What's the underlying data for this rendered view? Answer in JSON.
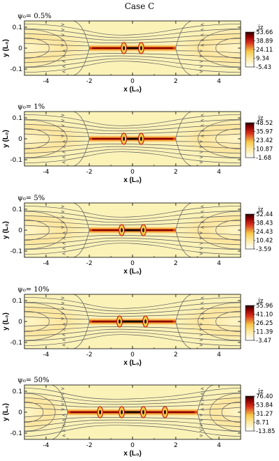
{
  "figure": {
    "title": "Case C"
  },
  "chart_data": [
    {
      "type": "heatmap",
      "panel_label": "ψ₀= 0.5%",
      "xlabel": "x (L₀)",
      "ylabel": "y (L₀)",
      "xlim": [
        -5,
        5
      ],
      "ylim": [
        -0.13,
        0.13
      ],
      "xticks": [
        "-4",
        "-2",
        "0",
        "2",
        "4"
      ],
      "yticks": [
        "0.1",
        "0",
        "-0.1"
      ],
      "colorbar": {
        "label": "jz",
        "ticks": [
          "53.66",
          "38.89",
          "24.11",
          "9.34",
          "-5.43"
        ],
        "range": [
          -5.43,
          53.66
        ]
      },
      "current_sheet": {
        "x_extent": [
          -2,
          2
        ],
        "plasmoid_centers": [
          -0.4,
          0.4
        ],
        "peak": 53.66
      },
      "x_points": [
        -2,
        2
      ]
    },
    {
      "type": "heatmap",
      "panel_label": "ψ₀= 1%",
      "xlabel": "x (L₀)",
      "ylabel": "y (L₀)",
      "xlim": [
        -5,
        5
      ],
      "ylim": [
        -0.13,
        0.13
      ],
      "xticks": [
        "-4",
        "-2",
        "0",
        "2",
        "4"
      ],
      "yticks": [
        "0.1",
        "0",
        "-0.1"
      ],
      "colorbar": {
        "label": "jz",
        "ticks": [
          "48.52",
          "35.97",
          "23.42",
          "10.87",
          "-1.68"
        ],
        "range": [
          -1.68,
          48.52
        ]
      },
      "current_sheet": {
        "x_extent": [
          -2,
          2
        ],
        "plasmoid_centers": [
          -0.4,
          0.4
        ],
        "peak": 48.52
      },
      "x_points": [
        -2,
        2
      ]
    },
    {
      "type": "heatmap",
      "panel_label": "ψ₀= 5%",
      "xlabel": "x (L₀)",
      "ylabel": "y (L₀)",
      "xlim": [
        -5,
        5
      ],
      "ylim": [
        -0.13,
        0.13
      ],
      "xticks": [
        "-4",
        "-2",
        "0",
        "2",
        "4"
      ],
      "yticks": [
        "0.1",
        "0",
        "-0.1"
      ],
      "colorbar": {
        "label": "jz",
        "ticks": [
          "52.44",
          "38.43",
          "24.43",
          "10.42",
          "-3.59"
        ],
        "range": [
          -3.59,
          52.44
        ]
      },
      "current_sheet": {
        "x_extent": [
          -2,
          2
        ],
        "plasmoid_centers": [
          -0.5,
          0.5
        ],
        "peak": 52.44
      },
      "x_points": [
        -2,
        2
      ]
    },
    {
      "type": "heatmap",
      "panel_label": "ψ₀= 10%",
      "xlabel": "x (L₀)",
      "ylabel": "y (L₀)",
      "xlim": [
        -5,
        5
      ],
      "ylim": [
        -0.13,
        0.13
      ],
      "xticks": [
        "-4",
        "-2",
        "0",
        "2",
        "4"
      ],
      "yticks": [
        "0.1",
        "0",
        "-0.1"
      ],
      "colorbar": {
        "label": "jz",
        "ticks": [
          "55.96",
          "41.10",
          "26.25",
          "11.39",
          "-3.47"
        ],
        "range": [
          -3.47,
          55.96
        ]
      },
      "current_sheet": {
        "x_extent": [
          -2,
          2
        ],
        "plasmoid_centers": [
          -0.6,
          0.6
        ],
        "peak": 55.96
      },
      "x_points": [
        -2,
        2
      ]
    },
    {
      "type": "heatmap",
      "panel_label": "ψ₀= 50%",
      "xlabel": "x (L₀)",
      "ylabel": "y (L₀)",
      "xlim": [
        -5,
        5
      ],
      "ylim": [
        -0.13,
        0.13
      ],
      "xticks": [
        "-4",
        "-2",
        "0",
        "2",
        "4"
      ],
      "yticks": [
        "0.1",
        "0",
        "-0.1"
      ],
      "colorbar": {
        "label": "jz",
        "ticks": [
          "76.40",
          "53.84",
          "31.27",
          "8.71",
          "-13.85"
        ],
        "range": [
          -13.85,
          76.4
        ]
      },
      "current_sheet": {
        "x_extent": [
          -3,
          3
        ],
        "plasmoid_centers": [
          -1.5,
          -0.5,
          0.5,
          1.5
        ],
        "peak": 76.4
      },
      "x_points": [
        -3,
        3
      ]
    }
  ],
  "colors": {
    "background_field": "#fbf2b8",
    "low": "#ffffff",
    "mid": "#f6c94a",
    "high": "#d7301f",
    "peak": "#2a0000",
    "fieldline": "#5a5a5a"
  }
}
